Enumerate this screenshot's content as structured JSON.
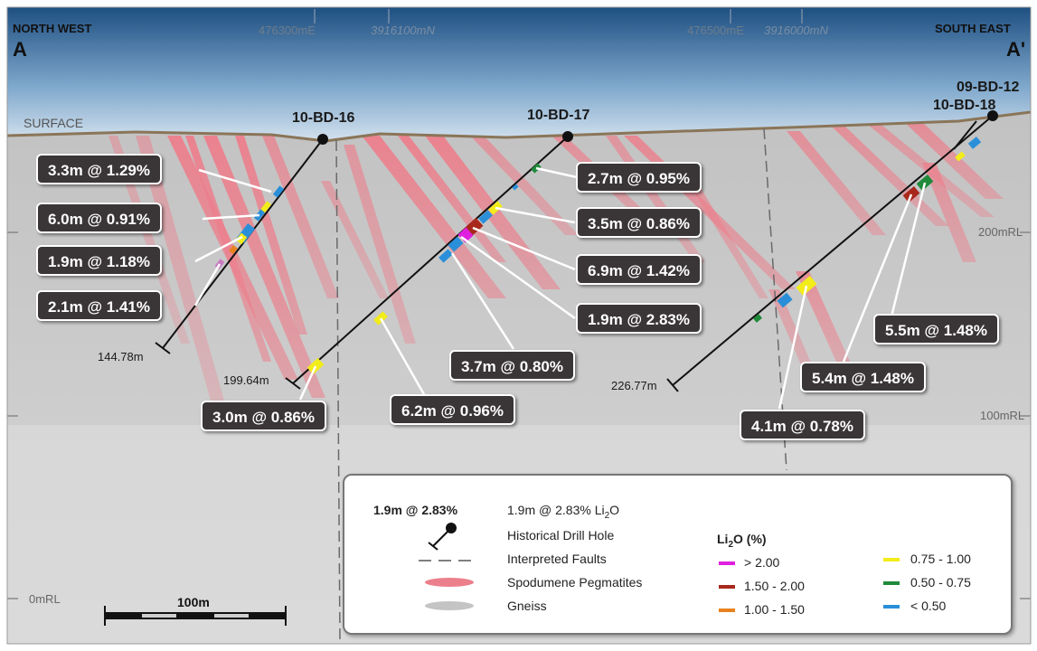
{
  "header": {
    "left_direction": "NORTH WEST",
    "left_section": "A",
    "right_direction": "SOUTH EAST",
    "right_section": "A'"
  },
  "coordinates": [
    {
      "easting": "476300mE",
      "northing": "3916100mN"
    },
    {
      "easting": "476500mE",
      "northing": "3916000mN"
    }
  ],
  "surface_label": "SURFACE",
  "elevation_labels": [
    "200mRL",
    "100mRL",
    "0mRL"
  ],
  "drill_holes": [
    {
      "name": "10-BD-16",
      "end_depth": "144.78m"
    },
    {
      "name": "10-BD-17",
      "end_depth": "199.64m"
    },
    {
      "name": "10-BD-18",
      "end_depth": "226.77m"
    },
    {
      "name": "09-BD-12",
      "end_depth": ""
    }
  ],
  "intercepts": [
    "3.3m @ 1.29%",
    "6.0m @ 0.91%",
    "1.9m @ 1.18%",
    "2.1m @ 1.41%",
    "2.7m @ 0.95%",
    "3.5m @ 0.86%",
    "6.9m @ 1.42%",
    "1.9m @ 2.83%",
    "3.7m @ 0.80%",
    "3.0m @ 0.86%",
    "6.2m @ 0.96%",
    "5.5m @ 1.48%",
    "5.4m @ 1.48%",
    "4.1m @ 0.78%"
  ],
  "scale_bar": "100m",
  "legend": {
    "example_label": "1.9m @ 2.83%",
    "example_desc_prefix": "1.9m @ 2.83% Li",
    "example_desc_sub": "2",
    "example_desc_suffix": "O",
    "items": [
      "Historical Drill Hole",
      "Interpreted Faults",
      "Spodumene Pegmatites",
      "Gneiss"
    ],
    "grade_title_prefix": "Li",
    "grade_title_sub": "2",
    "grade_title_suffix": "O (%)",
    "grades": [
      {
        "label": "> 2.00",
        "color": "#e020e0"
      },
      {
        "label": "1.50 - 2.00",
        "color": "#a8281c"
      },
      {
        "label": "1.00 - 1.50",
        "color": "#e8821e"
      },
      {
        "label": "0.75 - 1.00",
        "color": "#f2ec1a"
      },
      {
        "label": "0.50 - 0.75",
        "color": "#1f8a3a"
      },
      {
        "label": "< 0.50",
        "color": "#2a8fd8"
      }
    ]
  },
  "colors": {
    "pegmatite": "#ec7f8c",
    "gneiss": "#c9c9c9",
    "surface": "#8a7558",
    "callout_bg": "#3a3536"
  }
}
